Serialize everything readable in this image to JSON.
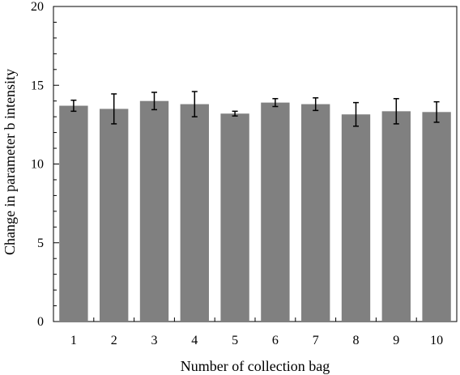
{
  "chart_data": {
    "type": "bar",
    "title": "",
    "xlabel": "Number of collection bag",
    "ylabel": "Change in parameter b intensity",
    "categories": [
      "1",
      "2",
      "3",
      "4",
      "5",
      "6",
      "7",
      "8",
      "9",
      "10"
    ],
    "values": [
      13.7,
      13.5,
      14.0,
      13.8,
      13.2,
      13.9,
      13.8,
      13.15,
      13.35,
      13.3
    ],
    "errors": [
      0.35,
      0.95,
      0.55,
      0.8,
      0.15,
      0.25,
      0.4,
      0.75,
      0.8,
      0.65
    ],
    "ylim": [
      0,
      20
    ],
    "yticks": [
      0,
      5,
      10,
      15,
      20
    ],
    "grid": false,
    "bar_color": "#808080",
    "error_color": "#000000"
  }
}
